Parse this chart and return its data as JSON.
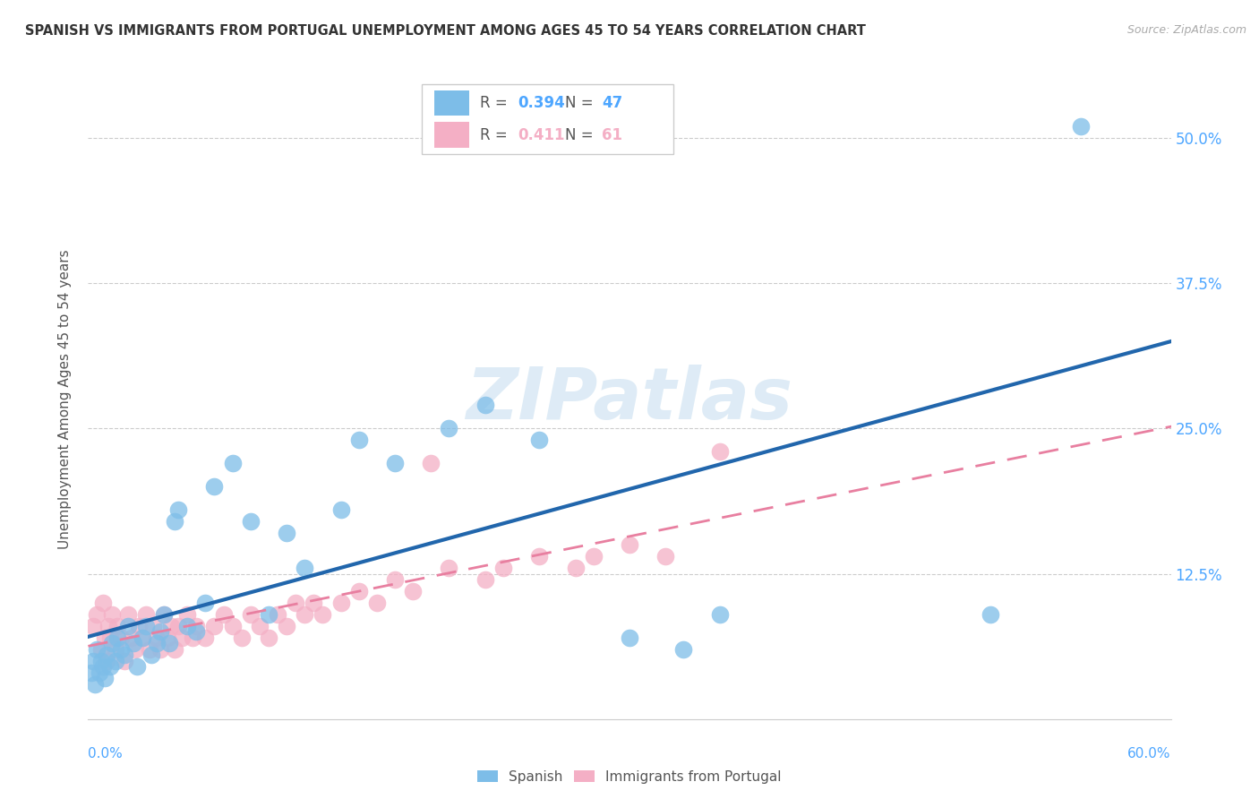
{
  "title": "SPANISH VS IMMIGRANTS FROM PORTUGAL UNEMPLOYMENT AMONG AGES 45 TO 54 YEARS CORRELATION CHART",
  "source": "Source: ZipAtlas.com",
  "ylabel": "Unemployment Among Ages 45 to 54 years",
  "xlim": [
    0.0,
    0.6
  ],
  "ylim": [
    0.0,
    0.55
  ],
  "xtick_labels": [
    "0.0%",
    "",
    "",
    "",
    "",
    "",
    "60.0%"
  ],
  "xtick_vals": [
    0.0,
    0.1,
    0.2,
    0.3,
    0.4,
    0.5,
    0.6
  ],
  "ytick_vals": [
    0.125,
    0.25,
    0.375,
    0.5
  ],
  "right_ytick_labels": [
    "12.5%",
    "25.0%",
    "37.5%",
    "50.0%"
  ],
  "blue_R": "0.394",
  "blue_N": "47",
  "pink_R": "0.411",
  "pink_N": "61",
  "blue_color": "#7dbde8",
  "pink_color": "#f4afc5",
  "blue_line_color": "#2166ac",
  "pink_line_color": "#e87fa0",
  "watermark": "ZIPatlas",
  "spanish_x": [
    0.002,
    0.003,
    0.004,
    0.005,
    0.006,
    0.007,
    0.008,
    0.009,
    0.01,
    0.012,
    0.013,
    0.015,
    0.016,
    0.018,
    0.02,
    0.022,
    0.025,
    0.027,
    0.03,
    0.032,
    0.035,
    0.038,
    0.04,
    0.042,
    0.045,
    0.048,
    0.05,
    0.055,
    0.06,
    0.065,
    0.07,
    0.08,
    0.09,
    0.1,
    0.11,
    0.12,
    0.14,
    0.15,
    0.17,
    0.2,
    0.22,
    0.25,
    0.3,
    0.33,
    0.35,
    0.5,
    0.55
  ],
  "spanish_y": [
    0.04,
    0.05,
    0.03,
    0.06,
    0.04,
    0.05,
    0.045,
    0.035,
    0.055,
    0.045,
    0.065,
    0.05,
    0.07,
    0.06,
    0.055,
    0.08,
    0.065,
    0.045,
    0.07,
    0.08,
    0.055,
    0.065,
    0.075,
    0.09,
    0.065,
    0.17,
    0.18,
    0.08,
    0.075,
    0.1,
    0.2,
    0.22,
    0.17,
    0.09,
    0.16,
    0.13,
    0.18,
    0.24,
    0.22,
    0.25,
    0.27,
    0.24,
    0.07,
    0.06,
    0.09,
    0.09,
    0.51
  ],
  "portugal_x": [
    0.003,
    0.005,
    0.007,
    0.008,
    0.009,
    0.01,
    0.011,
    0.012,
    0.013,
    0.015,
    0.016,
    0.018,
    0.02,
    0.022,
    0.024,
    0.026,
    0.028,
    0.03,
    0.032,
    0.034,
    0.036,
    0.038,
    0.04,
    0.042,
    0.044,
    0.046,
    0.048,
    0.05,
    0.052,
    0.055,
    0.058,
    0.06,
    0.065,
    0.07,
    0.075,
    0.08,
    0.085,
    0.09,
    0.095,
    0.1,
    0.105,
    0.11,
    0.115,
    0.12,
    0.125,
    0.13,
    0.14,
    0.15,
    0.16,
    0.17,
    0.18,
    0.19,
    0.2,
    0.22,
    0.23,
    0.25,
    0.27,
    0.28,
    0.3,
    0.32,
    0.35
  ],
  "portugal_y": [
    0.08,
    0.09,
    0.06,
    0.1,
    0.07,
    0.05,
    0.08,
    0.07,
    0.09,
    0.06,
    0.08,
    0.07,
    0.05,
    0.09,
    0.07,
    0.06,
    0.08,
    0.07,
    0.09,
    0.06,
    0.08,
    0.07,
    0.06,
    0.09,
    0.07,
    0.08,
    0.06,
    0.08,
    0.07,
    0.09,
    0.07,
    0.08,
    0.07,
    0.08,
    0.09,
    0.08,
    0.07,
    0.09,
    0.08,
    0.07,
    0.09,
    0.08,
    0.1,
    0.09,
    0.1,
    0.09,
    0.1,
    0.11,
    0.1,
    0.12,
    0.11,
    0.22,
    0.13,
    0.12,
    0.13,
    0.14,
    0.13,
    0.14,
    0.15,
    0.14,
    0.23
  ]
}
